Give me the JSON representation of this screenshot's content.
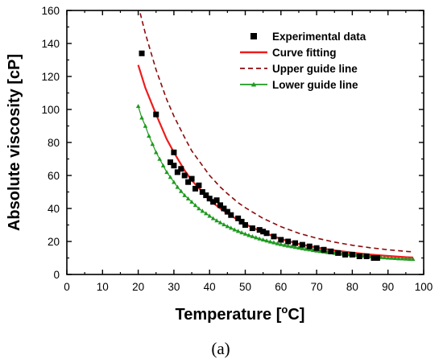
{
  "chart_data": {
    "type": "scatter",
    "xlabel_main": "Temperature [",
    "xlabel_sup": "o",
    "xlabel_tail": "C]",
    "ylabel": "Absolute viscosity [cP]",
    "caption": "(a)",
    "xlim": [
      0,
      100
    ],
    "ylim": [
      0,
      160
    ],
    "xticks": [
      0,
      10,
      20,
      30,
      40,
      50,
      60,
      70,
      80,
      90,
      100
    ],
    "yticks": [
      0,
      20,
      40,
      60,
      80,
      100,
      120,
      140,
      160
    ],
    "legend_position": "top-right",
    "grid": false,
    "series": [
      {
        "name": "Experimental data",
        "kind": "marker-square",
        "color": "#000000",
        "points": [
          [
            21,
            134
          ],
          [
            25,
            97
          ],
          [
            29,
            68
          ],
          [
            30,
            74
          ],
          [
            30,
            66
          ],
          [
            31,
            62
          ],
          [
            32,
            64
          ],
          [
            33,
            60
          ],
          [
            34,
            56
          ],
          [
            35,
            58
          ],
          [
            36,
            52
          ],
          [
            37,
            54
          ],
          [
            38,
            50
          ],
          [
            39,
            48
          ],
          [
            40,
            46
          ],
          [
            41,
            44
          ],
          [
            42,
            45
          ],
          [
            43,
            42
          ],
          [
            44,
            40
          ],
          [
            45,
            38
          ],
          [
            46,
            36
          ],
          [
            48,
            34
          ],
          [
            49,
            32
          ],
          [
            50,
            30
          ],
          [
            52,
            28
          ],
          [
            54,
            27
          ],
          [
            55,
            26
          ],
          [
            56,
            25
          ],
          [
            58,
            23
          ],
          [
            60,
            21
          ],
          [
            62,
            20
          ],
          [
            64,
            19
          ],
          [
            66,
            18
          ],
          [
            68,
            17
          ],
          [
            70,
            16
          ],
          [
            72,
            15
          ],
          [
            74,
            14
          ],
          [
            76,
            13
          ],
          [
            78,
            12
          ],
          [
            80,
            12
          ],
          [
            82,
            11
          ],
          [
            84,
            11
          ],
          [
            86,
            10
          ],
          [
            87,
            10
          ]
        ]
      },
      {
        "name": "Curve fitting",
        "kind": "line-solid",
        "color": "#ee1c1c",
        "points": [
          [
            20,
            127
          ],
          [
            22,
            113
          ],
          [
            25,
            97
          ],
          [
            28,
            82
          ],
          [
            30,
            74
          ],
          [
            33,
            63
          ],
          [
            35,
            57
          ],
          [
            38,
            50
          ],
          [
            40,
            45
          ],
          [
            43,
            40
          ],
          [
            45,
            37
          ],
          [
            48,
            33
          ],
          [
            50,
            30.5
          ],
          [
            55,
            25.5
          ],
          [
            60,
            21.5
          ],
          [
            65,
            18.5
          ],
          [
            70,
            16.3
          ],
          [
            75,
            14.6
          ],
          [
            80,
            13.2
          ],
          [
            85,
            12.1
          ],
          [
            90,
            11.2
          ],
          [
            95,
            10.5
          ],
          [
            97,
            10.3
          ]
        ]
      },
      {
        "name": "Upper guide line",
        "kind": "line-dashed",
        "color": "#8b0a0a",
        "points": [
          [
            20,
            163
          ],
          [
            22,
            146
          ],
          [
            25,
            124
          ],
          [
            28,
            106
          ],
          [
            30,
            96
          ],
          [
            33,
            83
          ],
          [
            35,
            75
          ],
          [
            38,
            66
          ],
          [
            40,
            60
          ],
          [
            43,
            53
          ],
          [
            45,
            49
          ],
          [
            48,
            43.5
          ],
          [
            50,
            40.5
          ],
          [
            55,
            34
          ],
          [
            60,
            29
          ],
          [
            65,
            25
          ],
          [
            70,
            22
          ],
          [
            75,
            19.6
          ],
          [
            80,
            17.7
          ],
          [
            85,
            16.2
          ],
          [
            90,
            15
          ],
          [
            95,
            14
          ],
          [
            97,
            13.7
          ]
        ]
      },
      {
        "name": "Lower guide line",
        "kind": "line-triangle",
        "color": "#1e9a1e",
        "points": [
          [
            20,
            102
          ],
          [
            21,
            95
          ],
          [
            22,
            90
          ],
          [
            23,
            84
          ],
          [
            24,
            79
          ],
          [
            25,
            74
          ],
          [
            26,
            70
          ],
          [
            27,
            66
          ],
          [
            28,
            62
          ],
          [
            29,
            59
          ],
          [
            30,
            56
          ],
          [
            31,
            53
          ],
          [
            32,
            50.5
          ],
          [
            33,
            48
          ],
          [
            34,
            46
          ],
          [
            35,
            44
          ],
          [
            36,
            42
          ],
          [
            37,
            40
          ],
          [
            38,
            38.5
          ],
          [
            39,
            37
          ],
          [
            40,
            35.5
          ],
          [
            41,
            34
          ],
          [
            42,
            32.7
          ],
          [
            43,
            31.5
          ],
          [
            44,
            30.3
          ],
          [
            45,
            29.2
          ],
          [
            46,
            28.2
          ],
          [
            47,
            27.2
          ],
          [
            48,
            26.3
          ],
          [
            49,
            25.4
          ],
          [
            50,
            24.6
          ],
          [
            51,
            23.8
          ],
          [
            52,
            23.1
          ],
          [
            53,
            22.4
          ],
          [
            54,
            21.7
          ],
          [
            55,
            21.1
          ],
          [
            56,
            20.5
          ],
          [
            57,
            19.9
          ],
          [
            58,
            19.4
          ],
          [
            59,
            18.8
          ],
          [
            60,
            18.3
          ],
          [
            61,
            17.8
          ],
          [
            62,
            17.4
          ],
          [
            63,
            17
          ],
          [
            64,
            16.6
          ],
          [
            65,
            16.2
          ],
          [
            66,
            15.8
          ],
          [
            67,
            15.4
          ],
          [
            68,
            15.1
          ],
          [
            69,
            14.7
          ],
          [
            70,
            14.4
          ],
          [
            71,
            14.1
          ],
          [
            72,
            13.8
          ],
          [
            73,
            13.5
          ],
          [
            74,
            13.3
          ],
          [
            75,
            13
          ],
          [
            76,
            12.8
          ],
          [
            77,
            12.5
          ],
          [
            78,
            12.3
          ],
          [
            79,
            12.1
          ],
          [
            80,
            11.9
          ],
          [
            81,
            11.7
          ],
          [
            82,
            11.5
          ],
          [
            83,
            11.3
          ],
          [
            84,
            11.1
          ],
          [
            85,
            10.9
          ],
          [
            86,
            10.7
          ],
          [
            87,
            10.6
          ],
          [
            88,
            10.4
          ],
          [
            89,
            10.3
          ],
          [
            90,
            10.1
          ],
          [
            91,
            10
          ],
          [
            92,
            9.9
          ],
          [
            93,
            9.7
          ],
          [
            94,
            9.6
          ],
          [
            95,
            9.5
          ],
          [
            96,
            9.4
          ],
          [
            97,
            9.3
          ]
        ]
      }
    ]
  }
}
